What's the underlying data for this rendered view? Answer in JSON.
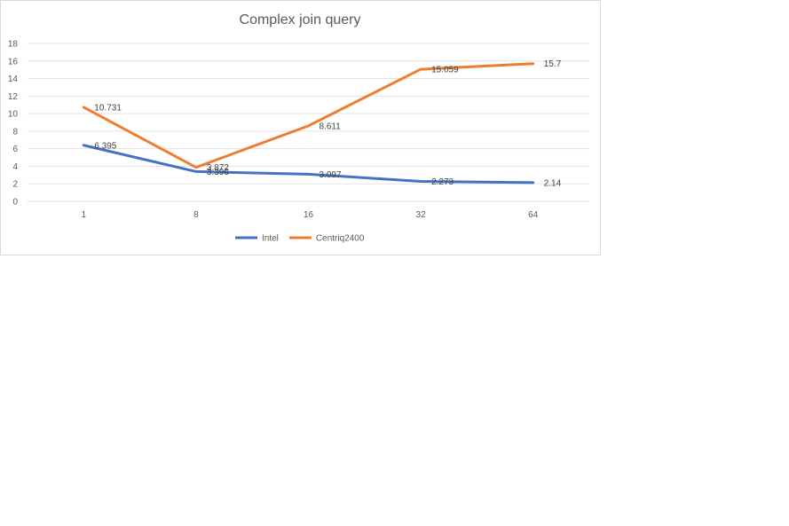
{
  "chart_data": {
    "type": "line",
    "title": "Complex join query",
    "xlabel": "",
    "ylabel": "",
    "categories": [
      "1",
      "8",
      "16",
      "32",
      "64"
    ],
    "ylim": [
      0,
      18
    ],
    "ytick_step": 2,
    "grid": true,
    "legend": "bottom",
    "series": [
      {
        "name": "Intel",
        "color": "#4472c4",
        "values": [
          6.395,
          3.396,
          3.097,
          2.273,
          2.14
        ],
        "labels": [
          "6.395",
          "3.396",
          "3.097",
          "2.273",
          "2.14"
        ]
      },
      {
        "name": "Centriq2400",
        "color": "#ed7d31",
        "values": [
          10.731,
          3.872,
          8.611,
          15.059,
          15.7
        ],
        "labels": [
          "10.731",
          "3.872",
          "8.611",
          "15.059",
          "15.7"
        ]
      }
    ]
  }
}
